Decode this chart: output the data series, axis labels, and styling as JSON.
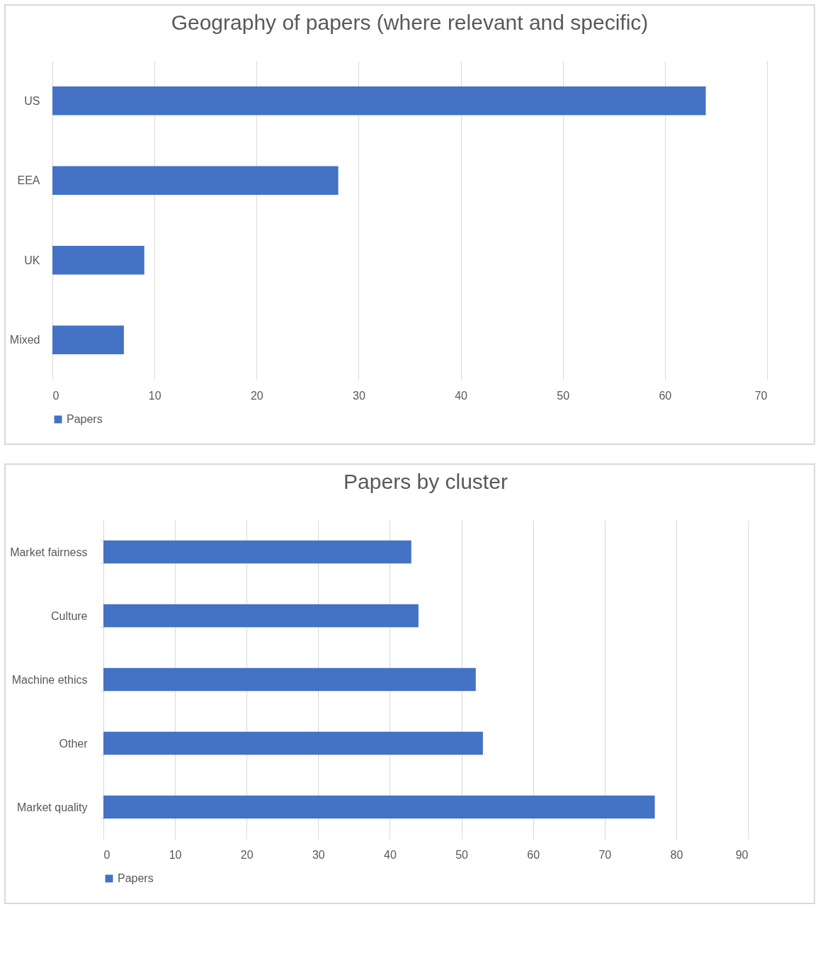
{
  "chart_data": [
    {
      "type": "bar",
      "orientation": "horizontal",
      "title": "Geography of papers (where relevant and specific)",
      "categories": [
        "US",
        "EEA",
        "UK",
        "Mixed"
      ],
      "series": [
        {
          "name": "Papers",
          "color": "#4472c4",
          "values": [
            64,
            28,
            9,
            7
          ]
        }
      ],
      "xlim": [
        0,
        70
      ],
      "xticks": [
        0,
        10,
        20,
        30,
        40,
        50,
        60,
        70
      ],
      "grid": "x",
      "legend": "bottom"
    },
    {
      "type": "bar",
      "orientation": "horizontal",
      "title": "Papers by cluster",
      "categories": [
        "Market fairness",
        "Culture",
        "Machine ethics",
        "Other",
        "Market quality"
      ],
      "series": [
        {
          "name": "Papers",
          "color": "#4472c4",
          "values": [
            43,
            44,
            52,
            53,
            77
          ]
        }
      ],
      "xlim": [
        0,
        90
      ],
      "xticks": [
        0,
        10,
        20,
        30,
        40,
        50,
        60,
        70,
        80,
        90
      ],
      "grid": "x",
      "legend": "bottom"
    }
  ]
}
